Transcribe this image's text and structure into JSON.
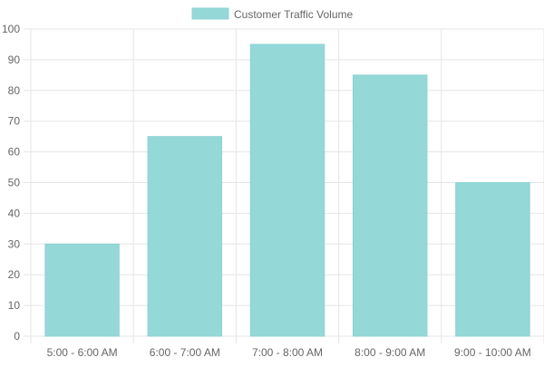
{
  "colors": {
    "bar_fill": "#94d8d8",
    "bar_stroke": "#8fd3d3",
    "grid": "#e5e5e5",
    "axis_text": "#666666"
  },
  "chart_data": {
    "type": "bar",
    "title": "",
    "xlabel": "",
    "ylabel": "",
    "categories": [
      "5:00 - 6:00 AM",
      "6:00 - 7:00 AM",
      "7:00 - 8:00 AM",
      "8:00 - 9:00 AM",
      "9:00 - 10:00 AM"
    ],
    "series": [
      {
        "name": "Customer Traffic Volume",
        "values": [
          30,
          65,
          95,
          85,
          50
        ]
      }
    ],
    "ylim": [
      0,
      100
    ],
    "yticks": [
      0,
      10,
      20,
      30,
      40,
      50,
      60,
      70,
      80,
      90,
      100
    ],
    "grid": true,
    "legend_position": "top-center"
  }
}
